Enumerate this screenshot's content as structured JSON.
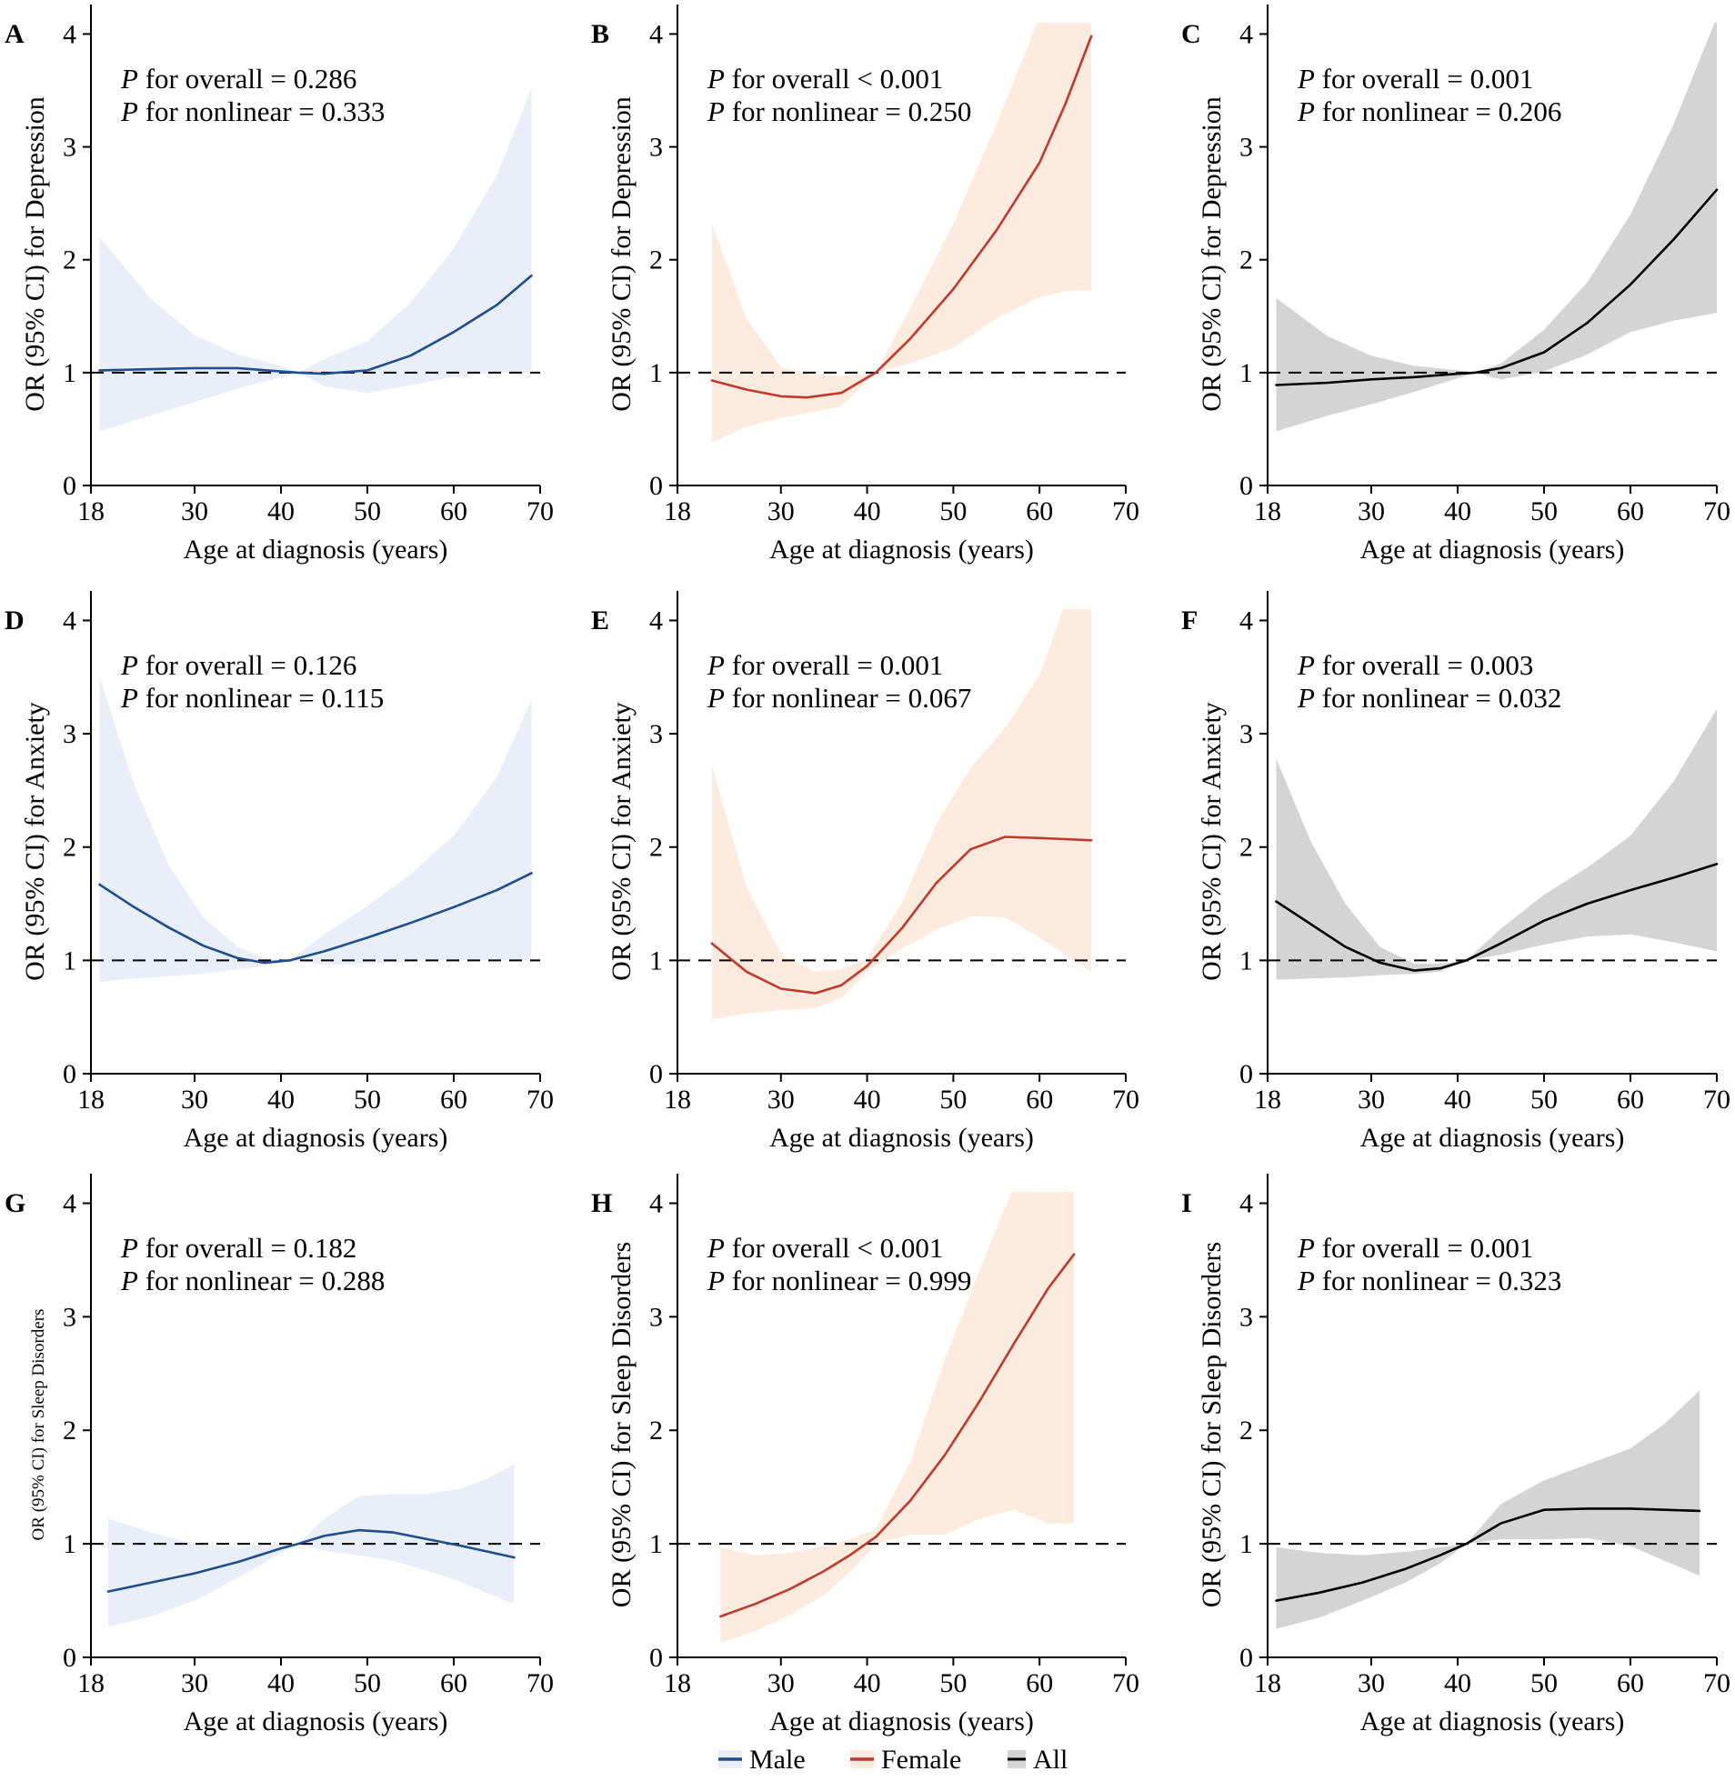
{
  "legend": {
    "items": [
      {
        "name": "Male",
        "line": "#1f4e8c",
        "fill": "#e9eef8"
      },
      {
        "name": "Female",
        "line": "#c0392b",
        "fill": "#fdebe0"
      },
      {
        "name": "All",
        "line": "#000000",
        "fill": "#d4d4d4"
      }
    ]
  },
  "chart_data": [
    {
      "panel": "A",
      "type": "area",
      "series_group": "Male",
      "title": "",
      "xlabel": "Age at diagnosis (years)",
      "ylabel": "OR (95% CI) for Depression",
      "xlim": [
        18,
        70
      ],
      "ylim": [
        0,
        4.1
      ],
      "xticks": [
        "18",
        "30",
        "40",
        "50",
        "60",
        "70"
      ],
      "xtick_values": [
        18,
        30,
        40,
        50,
        60,
        70
      ],
      "yticks": [
        "0",
        "1",
        "2",
        "3",
        "4"
      ],
      "ref": 1,
      "p_overall_prefix": "P",
      "p_overall_text": " for overall = 0.286",
      "p_nonlinear_prefix": "P",
      "p_nonlinear_text": " for nonlinear = 0.333",
      "x": [
        19,
        25,
        30,
        35,
        40,
        42,
        45,
        50,
        55,
        60,
        65,
        69
      ],
      "or": [
        1.02,
        1.03,
        1.04,
        1.04,
        1.01,
        1.0,
        0.99,
        1.02,
        1.15,
        1.36,
        1.6,
        1.86
      ],
      "lower": [
        0.48,
        0.62,
        0.74,
        0.86,
        0.96,
        1.0,
        0.88,
        0.82,
        0.89,
        0.96,
        1.0,
        1.0
      ],
      "upper": [
        2.2,
        1.65,
        1.33,
        1.16,
        1.06,
        1.0,
        1.12,
        1.28,
        1.62,
        2.1,
        2.75,
        3.52
      ]
    },
    {
      "panel": "B",
      "type": "area",
      "series_group": "Female",
      "title": "",
      "xlabel": "Age at diagnosis (years)",
      "ylabel": "OR (95% CI) for Depression",
      "xlim": [
        18,
        70
      ],
      "ylim": [
        0,
        4.1
      ],
      "xticks": [
        "18",
        "30",
        "40",
        "50",
        "60",
        "70"
      ],
      "xtick_values": [
        18,
        30,
        40,
        50,
        60,
        70
      ],
      "yticks": [
        "0",
        "1",
        "2",
        "3",
        "4"
      ],
      "ref": 1,
      "p_overall_prefix": "P",
      "p_overall_text": " for overall < 0.001",
      "p_nonlinear_prefix": "P",
      "p_nonlinear_text": " for nonlinear = 0.250",
      "x": [
        22,
        26,
        30,
        33,
        37,
        41,
        45,
        50,
        55,
        60,
        63,
        66
      ],
      "or": [
        0.93,
        0.85,
        0.79,
        0.78,
        0.82,
        1.0,
        1.3,
        1.74,
        2.26,
        2.86,
        3.38,
        3.98
      ],
      "lower": [
        0.38,
        0.52,
        0.6,
        0.64,
        0.7,
        1.0,
        1.08,
        1.22,
        1.48,
        1.67,
        1.72,
        1.73
      ],
      "upper": [
        2.32,
        1.48,
        1.05,
        0.99,
        0.97,
        1.0,
        1.57,
        2.32,
        3.2,
        4.15,
        4.15,
        4.15
      ]
    },
    {
      "panel": "C",
      "type": "area",
      "series_group": "All",
      "title": "",
      "xlabel": "Age at diagnosis (years)",
      "ylabel": "OR (95% CI) for Depression",
      "xlim": [
        18,
        70
      ],
      "ylim": [
        0,
        4.1
      ],
      "xticks": [
        "18",
        "30",
        "40",
        "50",
        "60",
        "70"
      ],
      "xtick_values": [
        18,
        30,
        40,
        50,
        60,
        70
      ],
      "yticks": [
        "0",
        "1",
        "2",
        "3",
        "4"
      ],
      "ref": 1,
      "p_overall_prefix": "P",
      "p_overall_text": " for overall = 0.001",
      "p_nonlinear_prefix": "P",
      "p_nonlinear_text": " for nonlinear = 0.206",
      "x": [
        19,
        25,
        30,
        35,
        40,
        42,
        45,
        50,
        55,
        60,
        65,
        70
      ],
      "or": [
        0.89,
        0.91,
        0.94,
        0.96,
        0.99,
        1.0,
        1.04,
        1.18,
        1.44,
        1.78,
        2.18,
        2.62
      ],
      "lower": [
        0.48,
        0.62,
        0.72,
        0.83,
        0.95,
        1.0,
        0.94,
        1.01,
        1.16,
        1.36,
        1.46,
        1.53
      ],
      "upper": [
        1.66,
        1.32,
        1.15,
        1.06,
        1.02,
        1.0,
        1.08,
        1.38,
        1.8,
        2.4,
        3.2,
        4.15
      ]
    },
    {
      "panel": "D",
      "type": "area",
      "series_group": "Male",
      "title": "",
      "xlabel": "Age at diagnosis (years)",
      "ylabel": "OR (95% CI) for Anxiety",
      "xlim": [
        18,
        70
      ],
      "ylim": [
        0,
        4.1
      ],
      "xticks": [
        "18",
        "30",
        "40",
        "50",
        "60",
        "70"
      ],
      "xtick_values": [
        18,
        30,
        40,
        50,
        60,
        70
      ],
      "yticks": [
        "0",
        "1",
        "2",
        "3",
        "4"
      ],
      "ref": 1,
      "p_overall_prefix": "P",
      "p_overall_text": " for overall = 0.126",
      "p_nonlinear_prefix": "P",
      "p_nonlinear_text": " for nonlinear = 0.115",
      "x": [
        19,
        23,
        27,
        31,
        35,
        38,
        41,
        45,
        50,
        55,
        60,
        65,
        69
      ],
      "or": [
        1.67,
        1.47,
        1.29,
        1.13,
        1.02,
        0.98,
        1.0,
        1.08,
        1.2,
        1.33,
        1.47,
        1.62,
        1.77
      ],
      "lower": [
        0.81,
        0.84,
        0.86,
        0.88,
        0.92,
        0.95,
        1.0,
        0.96,
        0.97,
        0.99,
        1.0,
        1.0,
        1.0
      ],
      "upper": [
        3.5,
        2.55,
        1.84,
        1.38,
        1.12,
        1.02,
        1.0,
        1.23,
        1.48,
        1.76,
        2.1,
        2.62,
        3.3
      ]
    },
    {
      "panel": "E",
      "type": "area",
      "series_group": "Female",
      "title": "",
      "xlabel": "Age at diagnosis (years)",
      "ylabel": "OR (95% CI) for Anxiety",
      "xlim": [
        18,
        70
      ],
      "ylim": [
        0,
        4.1
      ],
      "xticks": [
        "18",
        "30",
        "40",
        "50",
        "60",
        "70"
      ],
      "xtick_values": [
        18,
        30,
        40,
        50,
        60,
        70
      ],
      "yticks": [
        "0",
        "1",
        "2",
        "3",
        "4"
      ],
      "ref": 1,
      "p_overall_prefix": "P",
      "p_overall_text": " for overall = 0.001",
      "p_nonlinear_prefix": "P",
      "p_nonlinear_text": " for nonlinear = 0.067",
      "x": [
        22,
        26,
        30,
        34,
        37,
        40,
        44,
        48,
        52,
        56,
        60,
        63,
        66
      ],
      "or": [
        1.15,
        0.9,
        0.75,
        0.71,
        0.78,
        0.95,
        1.28,
        1.68,
        1.98,
        2.09,
        2.08,
        2.07,
        2.06
      ],
      "lower": [
        0.48,
        0.53,
        0.56,
        0.58,
        0.67,
        0.9,
        1.1,
        1.27,
        1.39,
        1.38,
        1.2,
        1.05,
        0.9
      ],
      "upper": [
        2.72,
        1.65,
        1.05,
        0.9,
        0.92,
        1.02,
        1.5,
        2.2,
        2.7,
        3.05,
        3.52,
        4.15,
        4.15
      ]
    },
    {
      "panel": "F",
      "type": "area",
      "series_group": "All",
      "title": "",
      "xlabel": "Age at diagnosis (years)",
      "ylabel": "OR (95% CI) for Anxiety",
      "xlim": [
        18,
        70
      ],
      "ylim": [
        0,
        4.1
      ],
      "xticks": [
        "18",
        "30",
        "40",
        "50",
        "60",
        "70"
      ],
      "xtick_values": [
        18,
        30,
        40,
        50,
        60,
        70
      ],
      "yticks": [
        "0",
        "1",
        "2",
        "3",
        "4"
      ],
      "ref": 1,
      "p_overall_prefix": "P",
      "p_overall_text": " for overall = 0.003",
      "p_nonlinear_prefix": "P",
      "p_nonlinear_text": " for nonlinear = 0.032",
      "x": [
        19,
        23,
        27,
        31,
        35,
        38,
        41,
        45,
        50,
        55,
        60,
        65,
        70
      ],
      "or": [
        1.52,
        1.32,
        1.12,
        0.98,
        0.91,
        0.93,
        1.0,
        1.15,
        1.35,
        1.5,
        1.62,
        1.73,
        1.85
      ],
      "lower": [
        0.83,
        0.84,
        0.85,
        0.87,
        0.88,
        0.9,
        1.0,
        1.05,
        1.14,
        1.21,
        1.23,
        1.16,
        1.08
      ],
      "upper": [
        2.78,
        2.05,
        1.5,
        1.12,
        0.97,
        0.97,
        1.0,
        1.28,
        1.58,
        1.82,
        2.1,
        2.58,
        3.22
      ]
    },
    {
      "panel": "G",
      "type": "area",
      "series_group": "Male",
      "title": "",
      "xlabel": "Age at diagnosis (years)",
      "ylabel": "OR (95% CI) for Sleep Disorders",
      "xlim": [
        18,
        70
      ],
      "ylim": [
        0,
        4.1
      ],
      "xticks": [
        "18",
        "30",
        "40",
        "50",
        "60",
        "70"
      ],
      "xtick_values": [
        18,
        30,
        40,
        50,
        60,
        70
      ],
      "yticks": [
        "0",
        "1",
        "2",
        "3",
        "4"
      ],
      "ref": 1,
      "p_overall_prefix": "P",
      "p_overall_text": " for overall = 0.182",
      "p_nonlinear_prefix": "P",
      "p_nonlinear_text": " for nonlinear = 0.288",
      "x": [
        20,
        25,
        30,
        35,
        40,
        42,
        45,
        49,
        53,
        57,
        61,
        64,
        67
      ],
      "or": [
        0.58,
        0.66,
        0.74,
        0.84,
        0.96,
        1.0,
        1.07,
        1.12,
        1.1,
        1.04,
        0.98,
        0.93,
        0.88
      ],
      "lower": [
        0.27,
        0.36,
        0.5,
        0.7,
        0.92,
        1.0,
        0.94,
        0.9,
        0.85,
        0.76,
        0.66,
        0.56,
        0.47
      ],
      "upper": [
        1.22,
        1.1,
        1.0,
        0.97,
        1.0,
        1.0,
        1.22,
        1.42,
        1.44,
        1.44,
        1.49,
        1.58,
        1.7
      ]
    },
    {
      "panel": "H",
      "type": "area",
      "series_group": "Female",
      "title": "",
      "xlabel": "Age at diagnosis (years)",
      "ylabel": "OR (95% CI) for Sleep Disorders",
      "xlim": [
        18,
        70
      ],
      "ylim": [
        0,
        4.1
      ],
      "xticks": [
        "18",
        "30",
        "40",
        "50",
        "60",
        "70"
      ],
      "xtick_values": [
        18,
        30,
        40,
        50,
        60,
        70
      ],
      "yticks": [
        "0",
        "1",
        "2",
        "3",
        "4"
      ],
      "ref": 1,
      "p_overall_prefix": "P",
      "p_overall_text": " for overall < 0.001",
      "p_nonlinear_prefix": "P",
      "p_nonlinear_text": " for nonlinear = 0.999",
      "x": [
        23,
        27,
        31,
        35,
        38,
        41,
        45,
        49,
        53,
        57,
        61,
        64
      ],
      "or": [
        0.36,
        0.47,
        0.6,
        0.76,
        0.9,
        1.06,
        1.38,
        1.78,
        2.25,
        2.76,
        3.25,
        3.55
      ],
      "lower": [
        0.13,
        0.23,
        0.37,
        0.55,
        0.75,
        1.0,
        1.08,
        1.08,
        1.22,
        1.3,
        1.18,
        1.18
      ],
      "upper": [
        0.97,
        0.9,
        0.92,
        0.98,
        1.04,
        1.13,
        1.72,
        2.62,
        3.4,
        4.15,
        4.15,
        4.15
      ]
    },
    {
      "panel": "I",
      "type": "area",
      "series_group": "All",
      "title": "",
      "xlabel": "Age at diagnosis (years)",
      "ylabel": "OR (95% CI) for Sleep Disorders",
      "xlim": [
        18,
        70
      ],
      "ylim": [
        0,
        4.1
      ],
      "xticks": [
        "18",
        "30",
        "40",
        "50",
        "60",
        "70"
      ],
      "xtick_values": [
        18,
        30,
        40,
        50,
        60,
        70
      ],
      "yticks": [
        "0",
        "1",
        "2",
        "3",
        "4"
      ],
      "ref": 1,
      "p_overall_prefix": "P",
      "p_overall_text": " for overall = 0.001",
      "p_nonlinear_prefix": "P",
      "p_nonlinear_text": " for nonlinear = 0.323",
      "x": [
        19,
        24,
        29,
        34,
        38,
        41,
        45,
        50,
        55,
        60,
        64,
        68
      ],
      "or": [
        0.5,
        0.57,
        0.66,
        0.78,
        0.9,
        1.0,
        1.18,
        1.3,
        1.31,
        1.31,
        1.3,
        1.29
      ],
      "lower": [
        0.25,
        0.35,
        0.5,
        0.66,
        0.83,
        1.0,
        1.04,
        1.04,
        1.05,
        0.98,
        0.85,
        0.72
      ],
      "upper": [
        0.97,
        0.92,
        0.9,
        0.93,
        0.97,
        1.0,
        1.35,
        1.56,
        1.7,
        1.84,
        2.06,
        2.35
      ]
    }
  ]
}
